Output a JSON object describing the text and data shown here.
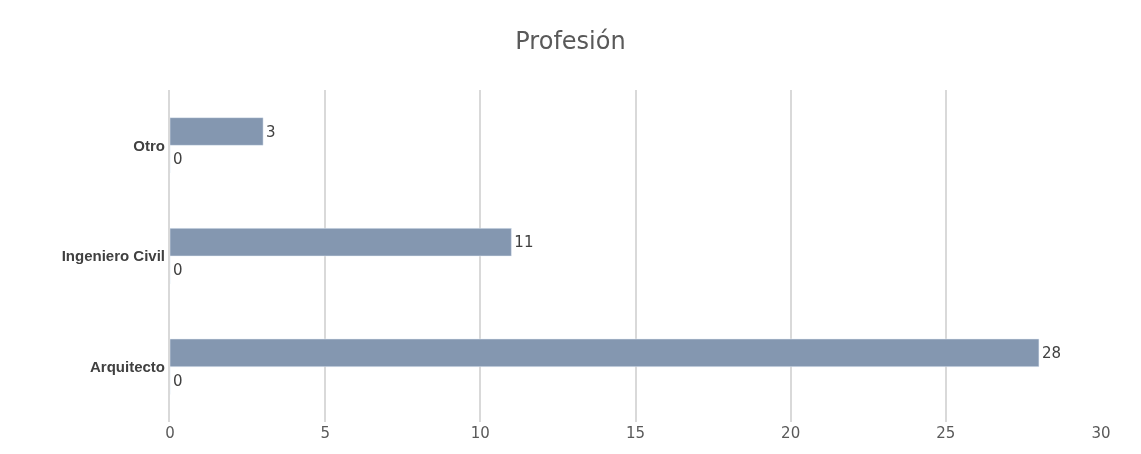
{
  "chart_data": {
    "type": "bar",
    "orientation": "horizontal",
    "title": "Profesión",
    "categories": [
      "Otro",
      "Ingeniero Civil",
      "Arquitecto"
    ],
    "series": [
      {
        "color": "#8497b0",
        "values": [
          3,
          11,
          28
        ]
      },
      {
        "values": [
          0,
          0,
          0
        ]
      }
    ],
    "xlim": [
      0,
      30
    ],
    "xticks": [
      0,
      5,
      10,
      15,
      20,
      25,
      30
    ],
    "grid": "x",
    "data_labels": true
  }
}
